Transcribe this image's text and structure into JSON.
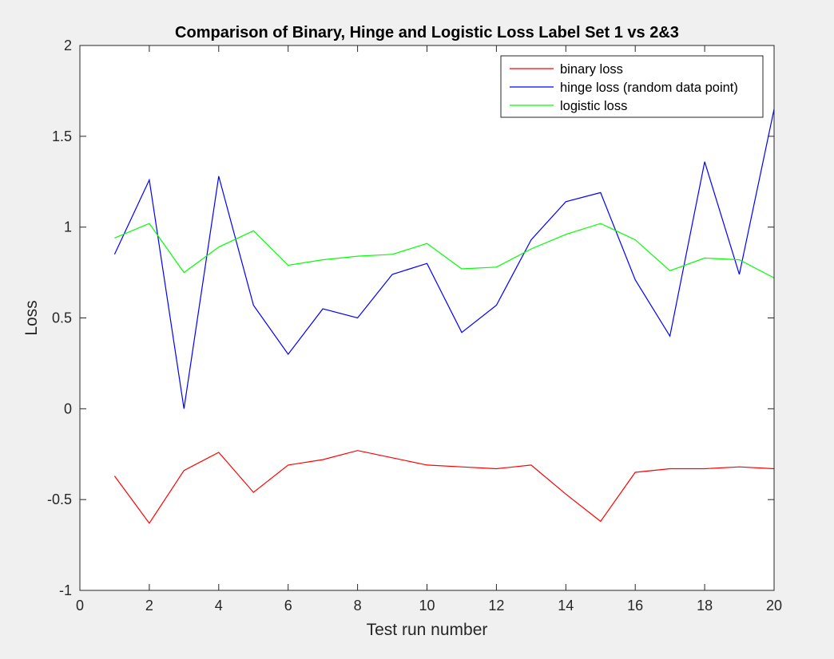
{
  "chart_data": {
    "type": "line",
    "title": "Comparison of Binary, Hinge and Logistic Loss Label Set 1 vs 2&3",
    "xlabel": "Test run number",
    "ylabel": "Loss",
    "xlim": [
      0,
      20
    ],
    "ylim": [
      -1,
      2
    ],
    "xticks": [
      0,
      2,
      4,
      6,
      8,
      10,
      12,
      14,
      16,
      18,
      20
    ],
    "yticks": [
      -1,
      -0.5,
      0,
      0.5,
      1,
      1.5,
      2
    ],
    "xtick_labels": [
      "0",
      "2",
      "4",
      "6",
      "8",
      "10",
      "12",
      "14",
      "16",
      "18",
      "20"
    ],
    "ytick_labels": [
      "-1",
      "-0.5",
      "0",
      "0.5",
      "1",
      "1.5",
      "2"
    ],
    "grid": false,
    "legend_position": "top-right",
    "x": [
      1,
      2,
      3,
      4,
      5,
      6,
      7,
      8,
      9,
      10,
      11,
      12,
      13,
      14,
      15,
      16,
      17,
      18,
      19,
      20
    ],
    "series": [
      {
        "name": "binary loss",
        "color": "#ff0000",
        "values": [
          -0.37,
          -0.63,
          -0.34,
          -0.24,
          -0.46,
          -0.31,
          -0.28,
          -0.23,
          -0.27,
          -0.31,
          -0.32,
          -0.33,
          -0.31,
          -0.47,
          -0.62,
          -0.35,
          -0.33,
          -0.33,
          -0.32,
          -0.33
        ]
      },
      {
        "name": "hinge loss (random data point)",
        "color": "#0000ff",
        "values": [
          0.85,
          1.26,
          0.0,
          1.28,
          0.57,
          0.3,
          0.55,
          0.5,
          0.74,
          0.8,
          0.42,
          0.57,
          0.93,
          1.14,
          1.19,
          0.71,
          0.4,
          1.36,
          0.74,
          1.65
        ]
      },
      {
        "name": "logistic loss",
        "color": "#00ff00",
        "values": [
          0.94,
          1.02,
          0.75,
          0.89,
          0.98,
          0.79,
          0.82,
          0.84,
          0.85,
          0.91,
          0.77,
          0.78,
          0.88,
          0.96,
          1.02,
          0.93,
          0.76,
          0.83,
          0.82,
          0.72
        ]
      }
    ]
  }
}
